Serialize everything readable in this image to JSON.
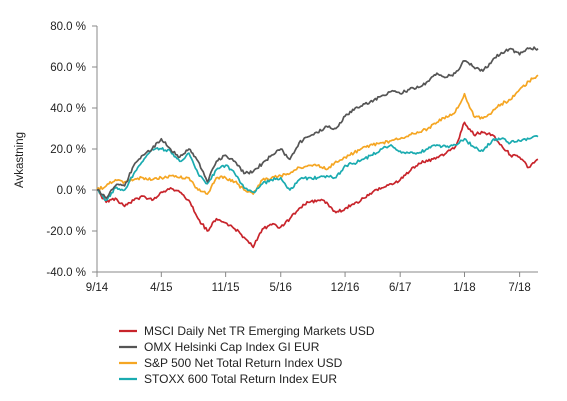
{
  "chart_data": {
    "type": "line",
    "title": "",
    "xlabel": "",
    "ylabel": "Avkastning",
    "ylim": [
      -40,
      80
    ],
    "yticks": [
      {
        "value": 80,
        "label": "80.0 %"
      },
      {
        "value": 60,
        "label": "60.0 %"
      },
      {
        "value": 40,
        "label": "40.0 %"
      },
      {
        "value": 20,
        "label": "20.0 %"
      },
      {
        "value": 0,
        "label": "0.0 %"
      },
      {
        "value": -20,
        "label": "-20.0 %"
      },
      {
        "value": -40,
        "label": "-40.0 %"
      }
    ],
    "xlim": [
      "2014-09",
      "2018-09"
    ],
    "xticks": [
      {
        "value": "2014-09",
        "label": "9/14"
      },
      {
        "value": "2015-04",
        "label": "4/15"
      },
      {
        "value": "2015-11",
        "label": "11/15"
      },
      {
        "value": "2016-05",
        "label": "5/16"
      },
      {
        "value": "2016-12",
        "label": "12/16"
      },
      {
        "value": "2017-06",
        "label": "6/17"
      },
      {
        "value": "2018-01",
        "label": "1/18"
      },
      {
        "value": "2018-07",
        "label": "7/18"
      }
    ],
    "grid": false,
    "legend_position": "bottom",
    "series": [
      {
        "name": "MSCI Daily Net TR Emerging Markets USD",
        "color": "#c8242b",
        "points": [
          [
            "2014-09",
            0
          ],
          [
            "2014-10",
            -6
          ],
          [
            "2014-11",
            -4
          ],
          [
            "2014-12",
            -8
          ],
          [
            "2015-01",
            -5
          ],
          [
            "2015-02",
            -3
          ],
          [
            "2015-03",
            -5
          ],
          [
            "2015-04",
            -1
          ],
          [
            "2015-05",
            1
          ],
          [
            "2015-06",
            -1
          ],
          [
            "2015-07",
            -5
          ],
          [
            "2015-08",
            -14
          ],
          [
            "2015-09",
            -20
          ],
          [
            "2015-10",
            -14
          ],
          [
            "2015-11",
            -16
          ],
          [
            "2015-12",
            -19
          ],
          [
            "2016-01",
            -23
          ],
          [
            "2016-02",
            -28
          ],
          [
            "2016-03",
            -19
          ],
          [
            "2016-04",
            -17
          ],
          [
            "2016-05",
            -18
          ],
          [
            "2016-06",
            -14
          ],
          [
            "2016-07",
            -9
          ],
          [
            "2016-08",
            -6
          ],
          [
            "2016-09",
            -5
          ],
          [
            "2016-10",
            -6
          ],
          [
            "2016-11",
            -11
          ],
          [
            "2016-12",
            -9
          ],
          [
            "2016-12-30",
            -7
          ],
          [
            "2017-02",
            -4
          ],
          [
            "2017-03",
            -1
          ],
          [
            "2017-04",
            1
          ],
          [
            "2017-05",
            3
          ],
          [
            "2017-06",
            5
          ],
          [
            "2017-07",
            9
          ],
          [
            "2017-08",
            13
          ],
          [
            "2017-09",
            14
          ],
          [
            "2017-10",
            16
          ],
          [
            "2017-11",
            18
          ],
          [
            "2017-12",
            21
          ],
          [
            "2018-01",
            33
          ],
          [
            "2018-02",
            27
          ],
          [
            "2018-03",
            28
          ],
          [
            "2018-04",
            27
          ],
          [
            "2018-05",
            22
          ],
          [
            "2018-06",
            17
          ],
          [
            "2018-07",
            16
          ],
          [
            "2018-08",
            11
          ],
          [
            "2018-09",
            15
          ]
        ]
      },
      {
        "name": "OMX Helsinki Cap Index GI EUR",
        "color": "#555555",
        "points": [
          [
            "2014-09",
            0
          ],
          [
            "2014-10",
            -4
          ],
          [
            "2014-11",
            2
          ],
          [
            "2014-12",
            2
          ],
          [
            "2015-01",
            12
          ],
          [
            "2015-02",
            17
          ],
          [
            "2015-03",
            20
          ],
          [
            "2015-04",
            25
          ],
          [
            "2015-05",
            20
          ],
          [
            "2015-06",
            16
          ],
          [
            "2015-07",
            20
          ],
          [
            "2015-08",
            14
          ],
          [
            "2015-09",
            4
          ],
          [
            "2015-10",
            14
          ],
          [
            "2015-11",
            17
          ],
          [
            "2015-12",
            14
          ],
          [
            "2016-01",
            8
          ],
          [
            "2016-02",
            9
          ],
          [
            "2016-03",
            13
          ],
          [
            "2016-04",
            17
          ],
          [
            "2016-05",
            20
          ],
          [
            "2016-06",
            15
          ],
          [
            "2016-07",
            23
          ],
          [
            "2016-08",
            26
          ],
          [
            "2016-09",
            28
          ],
          [
            "2016-10",
            31
          ],
          [
            "2016-11",
            30
          ],
          [
            "2016-12",
            36
          ],
          [
            "2016-12-30",
            39
          ],
          [
            "2017-02",
            42
          ],
          [
            "2017-03",
            43
          ],
          [
            "2017-04",
            46
          ],
          [
            "2017-05",
            48
          ],
          [
            "2017-06",
            47
          ],
          [
            "2017-07",
            49
          ],
          [
            "2017-08",
            50
          ],
          [
            "2017-09",
            53
          ],
          [
            "2017-10",
            57
          ],
          [
            "2017-11",
            55
          ],
          [
            "2017-12",
            57
          ],
          [
            "2018-01",
            63
          ],
          [
            "2018-02",
            60
          ],
          [
            "2018-03",
            58
          ],
          [
            "2018-04",
            63
          ],
          [
            "2018-05",
            67
          ],
          [
            "2018-06",
            69
          ],
          [
            "2018-07",
            66
          ],
          [
            "2018-08",
            69
          ],
          [
            "2018-09",
            69
          ]
        ]
      },
      {
        "name": "S&P 500 Net Total Return Index USD",
        "color": "#f5a623",
        "points": [
          [
            "2014-09",
            0
          ],
          [
            "2014-10",
            2
          ],
          [
            "2014-11",
            5
          ],
          [
            "2014-12",
            4
          ],
          [
            "2015-01",
            5
          ],
          [
            "2015-02",
            6
          ],
          [
            "2015-03",
            5
          ],
          [
            "2015-04",
            6
          ],
          [
            "2015-05",
            7
          ],
          [
            "2015-06",
            6
          ],
          [
            "2015-07",
            6
          ],
          [
            "2015-08",
            0
          ],
          [
            "2015-09",
            -2
          ],
          [
            "2015-10",
            6
          ],
          [
            "2015-11",
            6
          ],
          [
            "2015-12",
            4
          ],
          [
            "2016-01",
            0
          ],
          [
            "2016-02",
            -2
          ],
          [
            "2016-03",
            5
          ],
          [
            "2016-04",
            6
          ],
          [
            "2016-05",
            7
          ],
          [
            "2016-06",
            8
          ],
          [
            "2016-07",
            11
          ],
          [
            "2016-08",
            12
          ],
          [
            "2016-09",
            12
          ],
          [
            "2016-10",
            10
          ],
          [
            "2016-11",
            14
          ],
          [
            "2016-12",
            16
          ],
          [
            "2016-12-30",
            18
          ],
          [
            "2017-02",
            21
          ],
          [
            "2017-03",
            22
          ],
          [
            "2017-04",
            23
          ],
          [
            "2017-05",
            24
          ],
          [
            "2017-06",
            25
          ],
          [
            "2017-07",
            27
          ],
          [
            "2017-08",
            28
          ],
          [
            "2017-09",
            30
          ],
          [
            "2017-10",
            33
          ],
          [
            "2017-11",
            36
          ],
          [
            "2017-12",
            38
          ],
          [
            "2018-01",
            47
          ],
          [
            "2018-02",
            36
          ],
          [
            "2018-03",
            35
          ],
          [
            "2018-04",
            38
          ],
          [
            "2018-05",
            42
          ],
          [
            "2018-06",
            44
          ],
          [
            "2018-07",
            49
          ],
          [
            "2018-08",
            53
          ],
          [
            "2018-09",
            56
          ]
        ]
      },
      {
        "name": "STOXX 600 Total Return Index EUR",
        "color": "#1aabb0",
        "points": [
          [
            "2014-09",
            0
          ],
          [
            "2014-10",
            -5
          ],
          [
            "2014-11",
            1
          ],
          [
            "2014-12",
            0
          ],
          [
            "2015-01",
            8
          ],
          [
            "2015-02",
            14
          ],
          [
            "2015-03",
            20
          ],
          [
            "2015-04",
            20
          ],
          [
            "2015-05",
            19
          ],
          [
            "2015-06",
            14
          ],
          [
            "2015-07",
            18
          ],
          [
            "2015-08",
            8
          ],
          [
            "2015-09",
            3
          ],
          [
            "2015-10",
            10
          ],
          [
            "2015-11",
            12
          ],
          [
            "2015-12",
            8
          ],
          [
            "2016-01",
            1
          ],
          [
            "2016-02",
            -1
          ],
          [
            "2016-03",
            3
          ],
          [
            "2016-04",
            5
          ],
          [
            "2016-05",
            6
          ],
          [
            "2016-06",
            0
          ],
          [
            "2016-07",
            5
          ],
          [
            "2016-08",
            6
          ],
          [
            "2016-09",
            6
          ],
          [
            "2016-10",
            7
          ],
          [
            "2016-11",
            6
          ],
          [
            "2016-12",
            12
          ],
          [
            "2016-12-30",
            13
          ],
          [
            "2017-02",
            15
          ],
          [
            "2017-03",
            17
          ],
          [
            "2017-04",
            20
          ],
          [
            "2017-05",
            22
          ],
          [
            "2017-06",
            19
          ],
          [
            "2017-07",
            18
          ],
          [
            "2017-08",
            18
          ],
          [
            "2017-09",
            20
          ],
          [
            "2017-10",
            22
          ],
          [
            "2017-11",
            21
          ],
          [
            "2017-12",
            22
          ],
          [
            "2018-01",
            25
          ],
          [
            "2018-02",
            21
          ],
          [
            "2018-03",
            19
          ],
          [
            "2018-04",
            24
          ],
          [
            "2018-05",
            25
          ],
          [
            "2018-06",
            23
          ],
          [
            "2018-07",
            24
          ],
          [
            "2018-08",
            25
          ],
          [
            "2018-09",
            26
          ]
        ]
      }
    ]
  }
}
